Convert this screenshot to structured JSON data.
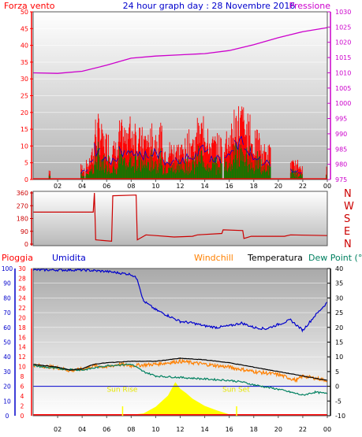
{
  "header": {
    "title": "24 hour graph day : 28 Novembre 2016",
    "left_label": "Forza vento",
    "right_label": "Pressione"
  },
  "colors": {
    "wind_gust": "#ff0000",
    "wind_avg": "#0000cc",
    "wind_speed": "#008000",
    "pressure": "#cc00cc",
    "direction": "#cc0000",
    "rain": "#ff0000",
    "humidity": "#0000cc",
    "windchill": "#ff8000",
    "temperature": "#000000",
    "dewpoint": "#008060",
    "solar": "#ffff00",
    "axis_left_wind": "#ff0000",
    "axis_right_pressure": "#cc00cc",
    "axis_rain": "#ff0000",
    "axis_humidity": "#0000cc",
    "axis_temp": "#000000"
  },
  "time_ticks": [
    "02",
    "04",
    "06",
    "08",
    "10",
    "12",
    "14",
    "16",
    "18",
    "20",
    "22",
    "00"
  ],
  "bottom_legend": {
    "rain": "Pioggia",
    "humidity": "Umidita",
    "windchill": "Windchill",
    "temperature": "Temperatura",
    "dewpoint": "Dew Point (°C"
  },
  "sun_labels": {
    "sunrise": "Sun Rise",
    "sunset": "Sun Set"
  },
  "compass": [
    "N",
    "W",
    "S",
    "E",
    "N"
  ],
  "chart_data": [
    {
      "type": "bar",
      "title": "24 hour graph day : 28 Novembre 2016",
      "left_axis": {
        "label": "Forza vento",
        "range": [
          0,
          50
        ],
        "ticks": [
          0,
          5,
          10,
          15,
          20,
          25,
          30,
          35,
          40,
          45,
          50
        ]
      },
      "right_axis": {
        "label": "Pressione",
        "range": [
          975,
          1030
        ],
        "ticks": [
          975,
          980,
          985,
          990,
          995,
          1000,
          1005,
          1010,
          1015,
          1020,
          1025,
          1030
        ]
      },
      "x_hours": [
        0,
        24
      ],
      "wind_bursts": [
        {
          "start": 1.3,
          "end": 1.4,
          "gust": 4
        },
        {
          "start": 3.9,
          "end": 4.2,
          "gust": 5
        },
        {
          "start": 4.3,
          "end": 4.6,
          "gust": 6
        },
        {
          "start": 4.6,
          "end": 5.0,
          "gust": 11
        },
        {
          "start": 5.0,
          "end": 5.6,
          "gust": 20
        },
        {
          "start": 5.6,
          "end": 6.2,
          "gust": 15
        },
        {
          "start": 6.2,
          "end": 7.0,
          "gust": 12
        },
        {
          "start": 7.0,
          "end": 7.6,
          "gust": 18
        },
        {
          "start": 7.6,
          "end": 8.4,
          "gust": 20
        },
        {
          "start": 8.4,
          "end": 9.6,
          "gust": 16
        },
        {
          "start": 9.6,
          "end": 10.6,
          "gust": 17
        },
        {
          "start": 10.6,
          "end": 11.6,
          "gust": 12
        },
        {
          "start": 11.6,
          "end": 12.4,
          "gust": 12
        },
        {
          "start": 12.4,
          "end": 13.4,
          "gust": 15
        },
        {
          "start": 13.4,
          "end": 14.4,
          "gust": 19
        },
        {
          "start": 14.4,
          "end": 15.4,
          "gust": 14
        },
        {
          "start": 15.6,
          "end": 16.4,
          "gust": 17
        },
        {
          "start": 16.4,
          "end": 17.2,
          "gust": 24
        },
        {
          "start": 17.2,
          "end": 17.8,
          "gust": 20
        },
        {
          "start": 17.8,
          "end": 18.6,
          "gust": 15
        },
        {
          "start": 18.6,
          "end": 19.4,
          "gust": 11
        },
        {
          "start": 21.0,
          "end": 21.6,
          "gust": 6
        },
        {
          "start": 21.6,
          "end": 22.0,
          "gust": 4
        },
        {
          "start": 23.9,
          "end": 24.0,
          "gust": 4
        }
      ],
      "pressure": [
        {
          "h": 0,
          "v": 1010
        },
        {
          "h": 2,
          "v": 1009.8
        },
        {
          "h": 4,
          "v": 1010.5
        },
        {
          "h": 6,
          "v": 1012.5
        },
        {
          "h": 8,
          "v": 1014.8
        },
        {
          "h": 10,
          "v": 1015.5
        },
        {
          "h": 12,
          "v": 1015.9
        },
        {
          "h": 14,
          "v": 1016.3
        },
        {
          "h": 16,
          "v": 1017.3
        },
        {
          "h": 18,
          "v": 1019.2
        },
        {
          "h": 20,
          "v": 1021.5
        },
        {
          "h": 22,
          "v": 1023.5
        },
        {
          "h": 24,
          "v": 1024.8
        }
      ]
    },
    {
      "type": "line",
      "title": "",
      "axis": {
        "range": [
          0,
          360
        ],
        "ticks": [
          0,
          90,
          180,
          270,
          360
        ]
      },
      "direction": [
        {
          "h": 0,
          "v": 225
        },
        {
          "h": 4.9,
          "v": 225
        },
        {
          "h": 5.0,
          "v": 360
        },
        {
          "h": 5.1,
          "v": 30
        },
        {
          "h": 6.4,
          "v": 20
        },
        {
          "h": 6.5,
          "v": 340
        },
        {
          "h": 8.4,
          "v": 345
        },
        {
          "h": 8.5,
          "v": 30
        },
        {
          "h": 9.2,
          "v": 65
        },
        {
          "h": 10.0,
          "v": 60
        },
        {
          "h": 11.5,
          "v": 50
        },
        {
          "h": 13.0,
          "v": 55
        },
        {
          "h": 13.4,
          "v": 65
        },
        {
          "h": 15.4,
          "v": 75
        },
        {
          "h": 15.5,
          "v": 100
        },
        {
          "h": 17.1,
          "v": 95
        },
        {
          "h": 17.2,
          "v": 40
        },
        {
          "h": 17.8,
          "v": 55
        },
        {
          "h": 20.5,
          "v": 55
        },
        {
          "h": 21.0,
          "v": 65
        },
        {
          "h": 24,
          "v": 60
        }
      ]
    },
    {
      "type": "line",
      "title": "",
      "rain_axis": {
        "label": "Pioggia",
        "range": [
          0,
          30
        ],
        "ticks": [
          0,
          2,
          4,
          6,
          8,
          10,
          12,
          14,
          16,
          18,
          20,
          22,
          24,
          26,
          28,
          30
        ]
      },
      "humidity_axis": {
        "label": "Umidita",
        "range": [
          0,
          100
        ],
        "ticks": [
          0,
          10,
          20,
          30,
          40,
          50,
          60,
          70,
          80,
          90,
          100
        ]
      },
      "temp_axis": {
        "label": "Dew Point (°C",
        "range": [
          -10,
          40
        ],
        "ticks": [
          -10,
          -5,
          0,
          5,
          10,
          15,
          20,
          25,
          30,
          35,
          40
        ]
      },
      "humidity": [
        {
          "h": 0,
          "v": 99
        },
        {
          "h": 4,
          "v": 99
        },
        {
          "h": 6,
          "v": 98
        },
        {
          "h": 8,
          "v": 96
        },
        {
          "h": 8.5,
          "v": 93
        },
        {
          "h": 9,
          "v": 78
        },
        {
          "h": 10,
          "v": 72
        },
        {
          "h": 11,
          "v": 68
        },
        {
          "h": 12,
          "v": 64
        },
        {
          "h": 13,
          "v": 63
        },
        {
          "h": 14,
          "v": 61
        },
        {
          "h": 15,
          "v": 60
        },
        {
          "h": 16,
          "v": 61
        },
        {
          "h": 17,
          "v": 63
        },
        {
          "h": 18,
          "v": 60
        },
        {
          "h": 19,
          "v": 59
        },
        {
          "h": 20,
          "v": 62
        },
        {
          "h": 21,
          "v": 65
        },
        {
          "h": 22,
          "v": 58
        },
        {
          "h": 23,
          "v": 68
        },
        {
          "h": 24,
          "v": 77
        }
      ],
      "temperature": [
        {
          "h": 0,
          "v": 7.5
        },
        {
          "h": 2,
          "v": 6.5
        },
        {
          "h": 3,
          "v": 5.5
        },
        {
          "h": 4,
          "v": 6
        },
        {
          "h": 5,
          "v": 7.5
        },
        {
          "h": 6,
          "v": 8
        },
        {
          "h": 8,
          "v": 8.5
        },
        {
          "h": 10,
          "v": 8.5
        },
        {
          "h": 12,
          "v": 9.5
        },
        {
          "h": 14,
          "v": 9
        },
        {
          "h": 16,
          "v": 8
        },
        {
          "h": 18,
          "v": 6.5
        },
        {
          "h": 20,
          "v": 5
        },
        {
          "h": 22,
          "v": 3.5
        },
        {
          "h": 24,
          "v": 2
        }
      ],
      "windchill": [
        {
          "h": 0,
          "v": 7.2
        },
        {
          "h": 2,
          "v": 6.3
        },
        {
          "h": 3,
          "v": 5.3
        },
        {
          "h": 4,
          "v": 5.8
        },
        {
          "h": 5,
          "v": 7
        },
        {
          "h": 6,
          "v": 6.5
        },
        {
          "h": 7,
          "v": 7.5
        },
        {
          "h": 8,
          "v": 7
        },
        {
          "h": 10,
          "v": 7.5
        },
        {
          "h": 12,
          "v": 8.5
        },
        {
          "h": 14,
          "v": 7.5
        },
        {
          "h": 16,
          "v": 6.5
        },
        {
          "h": 18,
          "v": 5
        },
        {
          "h": 20,
          "v": 4
        },
        {
          "h": 21.5,
          "v": 2
        },
        {
          "h": 22,
          "v": 3.5
        },
        {
          "h": 24,
          "v": 2
        }
      ],
      "dewpoint": [
        {
          "h": 0,
          "v": 7
        },
        {
          "h": 2,
          "v": 6
        },
        {
          "h": 4,
          "v": 5.5
        },
        {
          "h": 6,
          "v": 7
        },
        {
          "h": 8,
          "v": 7.5
        },
        {
          "h": 9,
          "v": 5
        },
        {
          "h": 10,
          "v": 3.5
        },
        {
          "h": 12,
          "v": 3
        },
        {
          "h": 14,
          "v": 2.5
        },
        {
          "h": 16,
          "v": 2
        },
        {
          "h": 17,
          "v": 1.5
        },
        {
          "h": 18,
          "v": 0.5
        },
        {
          "h": 20,
          "v": -1
        },
        {
          "h": 21,
          "v": -2
        },
        {
          "h": 22,
          "v": -3
        },
        {
          "h": 23,
          "v": -2
        },
        {
          "h": 24,
          "v": -2.5
        }
      ],
      "solar_relative": [
        {
          "h": 7.3,
          "v": 0
        },
        {
          "h": 9,
          "v": 0.05
        },
        {
          "h": 10,
          "v": 0.2
        },
        {
          "h": 11,
          "v": 0.45
        },
        {
          "h": 11.6,
          "v": 0.75
        },
        {
          "h": 12,
          "v": 0.6
        },
        {
          "h": 12.5,
          "v": 0.5
        },
        {
          "h": 13,
          "v": 0.38
        },
        {
          "h": 14,
          "v": 0.22
        },
        {
          "h": 15,
          "v": 0.12
        },
        {
          "h": 16,
          "v": 0.03
        },
        {
          "h": 16.6,
          "v": 0
        }
      ],
      "sunrise_hour": 7.3,
      "sunset_hour": 16.6
    }
  ]
}
